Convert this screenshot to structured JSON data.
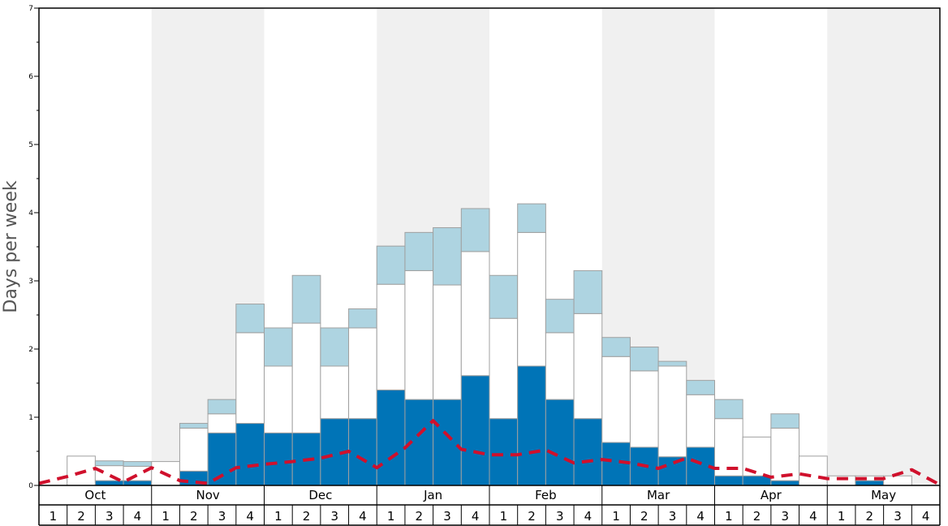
{
  "chart_data": {
    "type": "bar",
    "ylabel": "Days per week",
    "ylim": [
      0,
      7
    ],
    "yticks": [
      "0",
      "1",
      "2",
      "3",
      "4",
      "5",
      "6",
      "7"
    ],
    "months": [
      "Oct",
      "Nov",
      "Dec",
      "Jan",
      "Feb",
      "Mar",
      "Apr",
      "May"
    ],
    "weeks_per_month": [
      "1",
      "2",
      "3",
      "4"
    ],
    "grid": false,
    "colors": {
      "dark": "#0074b7",
      "light": "#aed4e1",
      "white_bar": "#ffffff",
      "bar_stroke": "#a0a0a0",
      "shade": "#f0f0f0",
      "average_line": "#d0102c"
    },
    "series": [
      {
        "values": [
          0,
          0,
          0.07,
          0.07,
          0,
          0.21,
          0.77,
          0.91,
          0.77,
          0.77,
          0.98,
          0.98,
          1.4,
          1.26,
          1.26,
          1.61,
          0.98,
          1.75,
          1.26,
          0.98,
          0.63,
          0.56,
          0.42,
          0.56,
          0.14,
          0.14,
          0.07,
          0,
          0,
          0.07,
          0,
          0
        ]
      },
      {
        "values": [
          0,
          0.43,
          0.22,
          0.21,
          0.35,
          0.63,
          0.28,
          1.33,
          0.98,
          1.61,
          0.77,
          1.33,
          1.55,
          1.89,
          1.68,
          1.82,
          1.47,
          1.96,
          0.98,
          1.54,
          1.26,
          1.12,
          1.33,
          0.77,
          0.84,
          0.57,
          0.77,
          0.43,
          0.14,
          0.07,
          0.14,
          0
        ]
      },
      {
        "values": [
          0,
          0,
          0.07,
          0.07,
          0,
          0.07,
          0.21,
          0.42,
          0.56,
          0.7,
          0.56,
          0.28,
          0.56,
          0.56,
          0.84,
          0.63,
          0.63,
          0.42,
          0.49,
          0.63,
          0.28,
          0.35,
          0.07,
          0.21,
          0.28,
          0,
          0.21,
          0,
          0,
          0,
          0,
          0
        ]
      }
    ],
    "average": [
      0.03,
      0.13,
      0.25,
      0.05,
      0.26,
      0.07,
      0.03,
      0.26,
      0.31,
      0.35,
      0.4,
      0.5,
      0.26,
      0.55,
      0.95,
      0.53,
      0.45,
      0.45,
      0.52,
      0.33,
      0.38,
      0.33,
      0.25,
      0.4,
      0.25,
      0.25,
      0.12,
      0.17,
      0.1,
      0.1,
      0.1,
      0.23,
      0.01
    ]
  }
}
